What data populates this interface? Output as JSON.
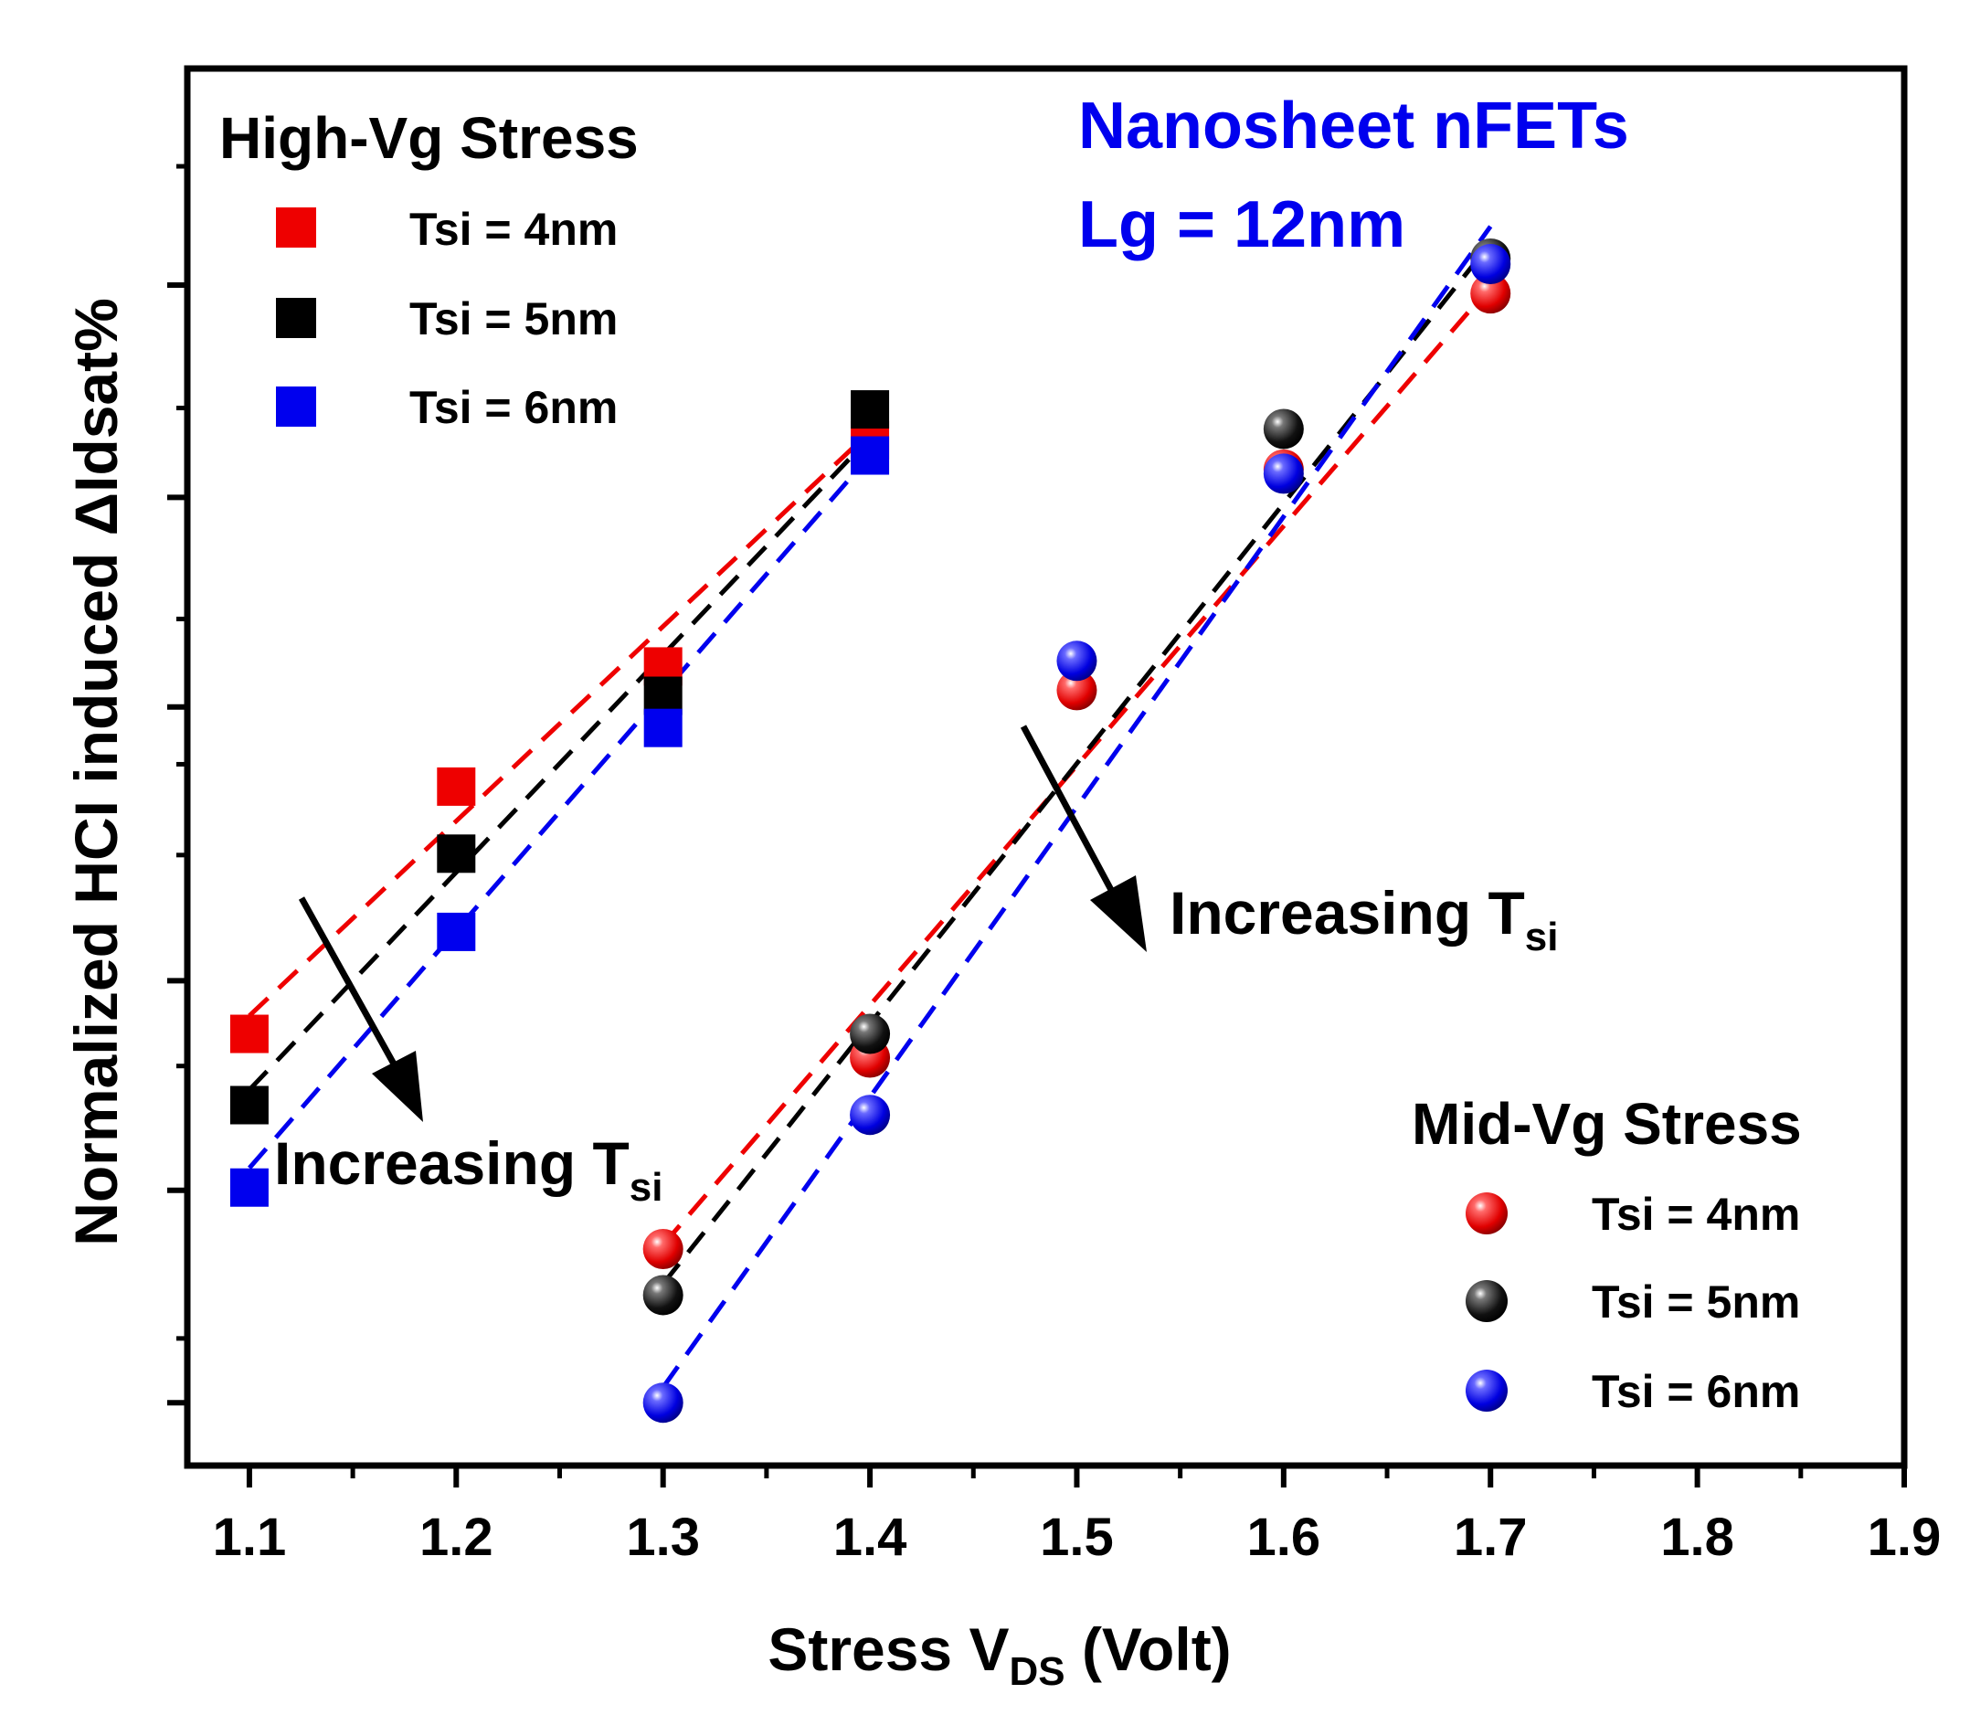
{
  "chart_data": {
    "type": "scatter",
    "xlabel": "Stress V",
    "xlabel_sub": "DS",
    "xlabel_suffix": " (Volt)",
    "ylabel": "Normalized HCI induced ΔIdsat%",
    "xlim": [
      1.07,
      1.9
    ],
    "ylim": [
      0,
      100
    ],
    "x_ticks": [
      1.1,
      1.2,
      1.3,
      1.4,
      1.5,
      1.6,
      1.7,
      1.8,
      1.9
    ],
    "x_tick_labels": [
      "1.1",
      "1.2",
      "1.3",
      "1.4",
      "1.5",
      "1.6",
      "1.7",
      "1.8",
      "1.9"
    ],
    "y_major_ticks": [
      4.5,
      19.7,
      34.7,
      54.3,
      69.3,
      84.5
    ],
    "y_minor_ticks": [
      9.1,
      28.6,
      43.7,
      50.2,
      60.6,
      75.7,
      93
    ],
    "y_tick_labels_shown": false,
    "device_label": [
      "Nanosheet nFETs",
      "Lg = 12nm"
    ],
    "device_label_color": "#0000ee",
    "groups": [
      {
        "title": "High-Vg Stress",
        "marker": "square",
        "series": [
          {
            "name": "Tsi = 4nm",
            "color": "#ee0000",
            "x": [
              1.1,
              1.2,
              1.3,
              1.4
            ],
            "y": [
              30.9,
              48.6,
              57.2,
              73.4
            ],
            "fit_x": [
              1.1,
              1.4
            ],
            "fit_y": [
              32.2,
              74.0
            ]
          },
          {
            "name": "Tsi = 5nm",
            "color": "#000000",
            "x": [
              1.1,
              1.2,
              1.3,
              1.4
            ],
            "y": [
              25.8,
              43.8,
              55.1,
              75.6
            ],
            "fit_x": [
              1.1,
              1.4
            ],
            "fit_y": [
              26.9,
              73.6
            ]
          },
          {
            "name": "Tsi = 6nm",
            "color": "#0000ee",
            "x": [
              1.1,
              1.2,
              1.3,
              1.4
            ],
            "y": [
              19.9,
              38.2,
              52.8,
              72.3
            ],
            "fit_x": [
              1.1,
              1.4
            ],
            "fit_y": [
              21.3,
              72.3
            ]
          }
        ]
      },
      {
        "title": "Mid-Vg Stress",
        "marker": "sphere",
        "series": [
          {
            "name": "Tsi = 4nm",
            "color": "#ee0000",
            "x": [
              1.3,
              1.4,
              1.5,
              1.6,
              1.7
            ],
            "y": [
              15.5,
              29.2,
              55.5,
              71.3,
              83.9
            ],
            "fit_x": [
              1.3,
              1.7
            ],
            "fit_y": [
              15.8,
              84.4
            ]
          },
          {
            "name": "Tsi = 5nm",
            "color": "#000000",
            "x": [
              1.3,
              1.4,
              1.6,
              1.7
            ],
            "y": [
              12.2,
              30.9,
              74.2,
              86.4
            ],
            "fit_x": [
              1.3,
              1.7
            ],
            "fit_y": [
              13.0,
              87.5
            ]
          },
          {
            "name": "Tsi = 6nm",
            "color": "#0000ee",
            "x": [
              1.3,
              1.4,
              1.5,
              1.6,
              1.7
            ],
            "y": [
              4.5,
              25.1,
              57.6,
              71.0,
              86.0
            ],
            "fit_x": [
              1.3,
              1.7
            ],
            "fit_y": [
              5.6,
              88.7
            ]
          }
        ]
      }
    ],
    "annotations": [
      {
        "text": "Increasing T",
        "sub": "si",
        "note": "arrow near High-Vg Stress fits"
      },
      {
        "text": "Increasing T",
        "sub": "si",
        "note": "arrow near Mid-Vg Stress fits"
      }
    ]
  }
}
